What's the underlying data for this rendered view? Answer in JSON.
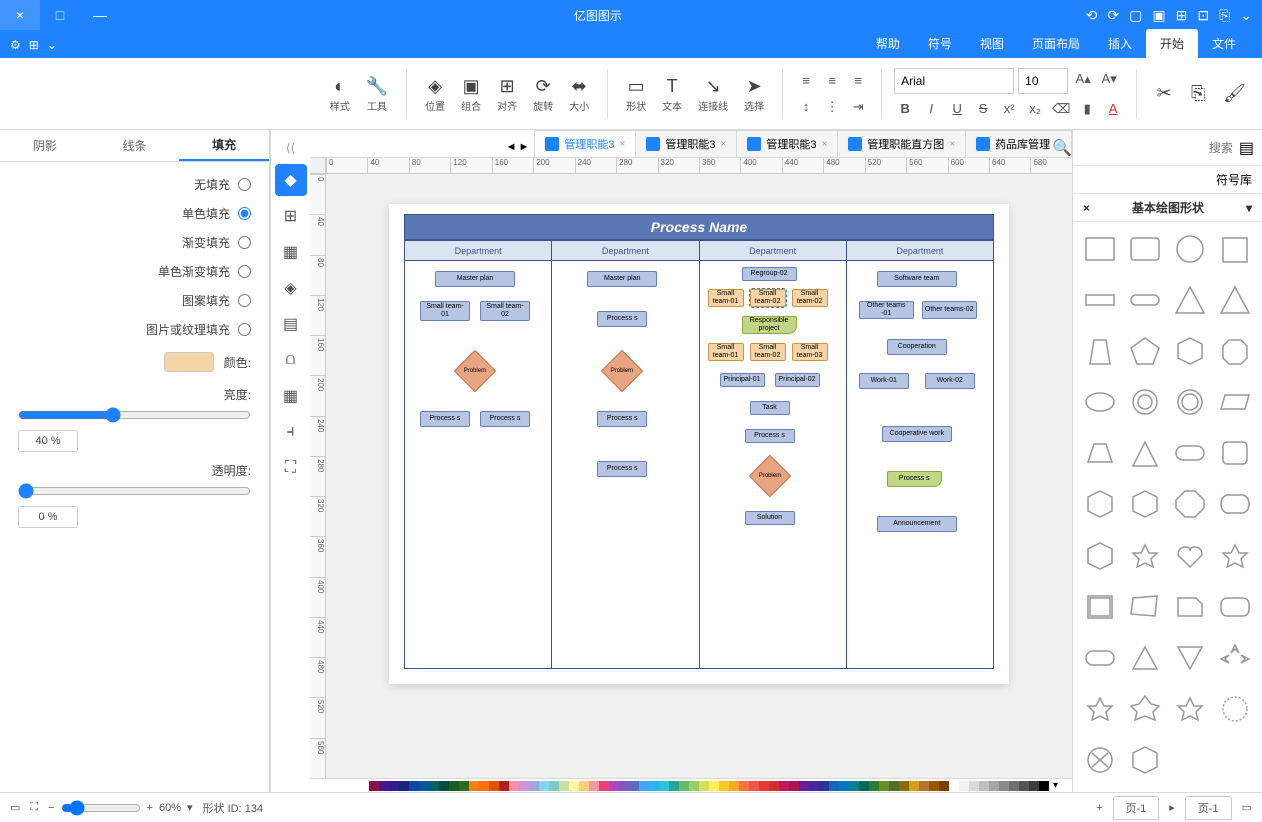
{
  "app": {
    "title": "亿图图示"
  },
  "window": {
    "minimize": "—",
    "maximize": "□",
    "close": "×"
  },
  "quickAccess": [
    "⟲",
    "⟳",
    "▢",
    "▣",
    "⊞",
    "⊡",
    "⎘",
    "⌄"
  ],
  "menubar": {
    "items": [
      "文件",
      "开始",
      "插入",
      "页面布局",
      "视图",
      "符号",
      "帮助"
    ],
    "activeIndex": 1
  },
  "ribbon": {
    "clipboard": {
      "cut": "剪切",
      "copy": "复制",
      "paste": "粘贴",
      "format": "格式刷"
    },
    "font": {
      "name": "Arial",
      "size": "10",
      "bold": "B",
      "italic": "I",
      "underline": "U",
      "strike": "S",
      "super": "x²",
      "sub": "x₂",
      "clear": "⌫",
      "highlight": "▮",
      "color": "A"
    },
    "paragraph": {
      "alignL": "≡",
      "alignC": "≡",
      "alignR": "≡",
      "spacing": "↕",
      "bullets": "⋮"
    },
    "shape": {
      "open": "形状",
      "text": "文本",
      "connector": "连接线",
      "select": "选择",
      "position": "位置",
      "combine": "组合",
      "align": "对齐",
      "rotate": "旋转",
      "size": "大小",
      "style": "样式",
      "tools": "工具"
    }
  },
  "docTabs": {
    "items": [
      {
        "label": "药品库管理"
      },
      {
        "label": "管理职能直方图"
      },
      {
        "label": "管理职能3"
      },
      {
        "label": "管理职能3"
      },
      {
        "label": "管理职能3"
      }
    ],
    "activeIndex": 4
  },
  "shapePanel": {
    "searchLabel": "符号库",
    "searchPlaceholder": "搜索",
    "header": "基本绘图形状"
  },
  "flowchart": {
    "title": "Process Name",
    "lanes": [
      "Department",
      "Department",
      "Department",
      "Department"
    ],
    "lane1": {
      "n1": "Software team",
      "n2a": "Other teams -01",
      "n2b": "Other teams-02",
      "n3": "Cooperation",
      "n4a": "Work-01",
      "n4b": "Work-02",
      "n5": "Cooperative work",
      "n6": "Process s",
      "n7": "Announcement"
    },
    "lane2": {
      "n1": "Regroup-02",
      "d1a": "Small team-01",
      "d1b": "Small team-02",
      "d1c": "Small team-02",
      "n2": "Responsible project",
      "d2a": "Small team-01",
      "d2b": "Small team-02",
      "d2c": "Small team-03",
      "n3a": "Principal-01",
      "n3b": "Principal-02",
      "n4": "Task",
      "n5": "Process s",
      "dec": "Problem",
      "n6": "Solution"
    },
    "lane3": {
      "n1": "Master plan",
      "n2": "Process s",
      "dec": "Problem",
      "n3": "Process s",
      "n4": "Process s"
    },
    "lane4": {
      "n1": "Master plan",
      "n2a": "Small team-01",
      "n2b": "Small team-02",
      "dec": "Problem",
      "n3a": "Process s",
      "n3b": "Process s"
    }
  },
  "rightPanel": {
    "tabs": [
      "填充",
      "线条",
      "阴影"
    ],
    "options": [
      "无填充",
      "单色填充",
      "渐变填充",
      "单色渐变填充",
      "图案填充",
      "图片或纹理填充"
    ],
    "selectedOption": 1,
    "colorLabel": "颜色:",
    "fillColor": "#f5d5a8",
    "fillLabel": "亮度:",
    "fillValue": "40 %",
    "opacityLabel": "透明度:",
    "opacityValue": "0 %"
  },
  "vtools": [
    "◆",
    "⊞",
    "▦",
    "◈",
    "▤",
    "⩍",
    "▦",
    "⫞",
    "⛶"
  ],
  "colorStrip": [
    "#000000",
    "#3b3b3b",
    "#555555",
    "#707070",
    "#8a8a8a",
    "#a5a5a5",
    "#bfbfbf",
    "#d9d9d9",
    "#f2f2f2",
    "#ffffff",
    "#7a3e00",
    "#9c5800",
    "#b87333",
    "#d4a017",
    "#8a6d00",
    "#556b2f",
    "#6b8e23",
    "#2e7d32",
    "#00695c",
    "#00838f",
    "#0277bd",
    "#1565c0",
    "#283593",
    "#4527a0",
    "#6a1b9a",
    "#ad1457",
    "#c2185b",
    "#d32f2f",
    "#e53935",
    "#ef5350",
    "#ff7043",
    "#ffa726",
    "#ffca28",
    "#ffee58",
    "#d4e157",
    "#9ccc65",
    "#66bb6a",
    "#26a69a",
    "#26c6da",
    "#29b6f6",
    "#42a5f5",
    "#5c6bc0",
    "#7e57c2",
    "#ab47bc",
    "#ec407a",
    "#ef9a9a",
    "#ffcc80",
    "#fff59d",
    "#c5e1a5",
    "#80cbc4",
    "#81d4fa",
    "#9fa8da",
    "#ce93d8",
    "#f48fb1",
    "#b71c1c",
    "#e65100",
    "#ff6f00",
    "#f57f17",
    "#33691e",
    "#1b5e20",
    "#004d40",
    "#006064",
    "#01579b",
    "#0d47a1",
    "#1a237e",
    "#311b92",
    "#4a148c",
    "#880e4f"
  ],
  "statusbar": {
    "pageTab1": "页-1",
    "pageTab2": "页-1",
    "add": "+",
    "shapeId": "形状 ID: 134",
    "zoom": "60%",
    "fit": "⛶",
    "full": "▭"
  }
}
